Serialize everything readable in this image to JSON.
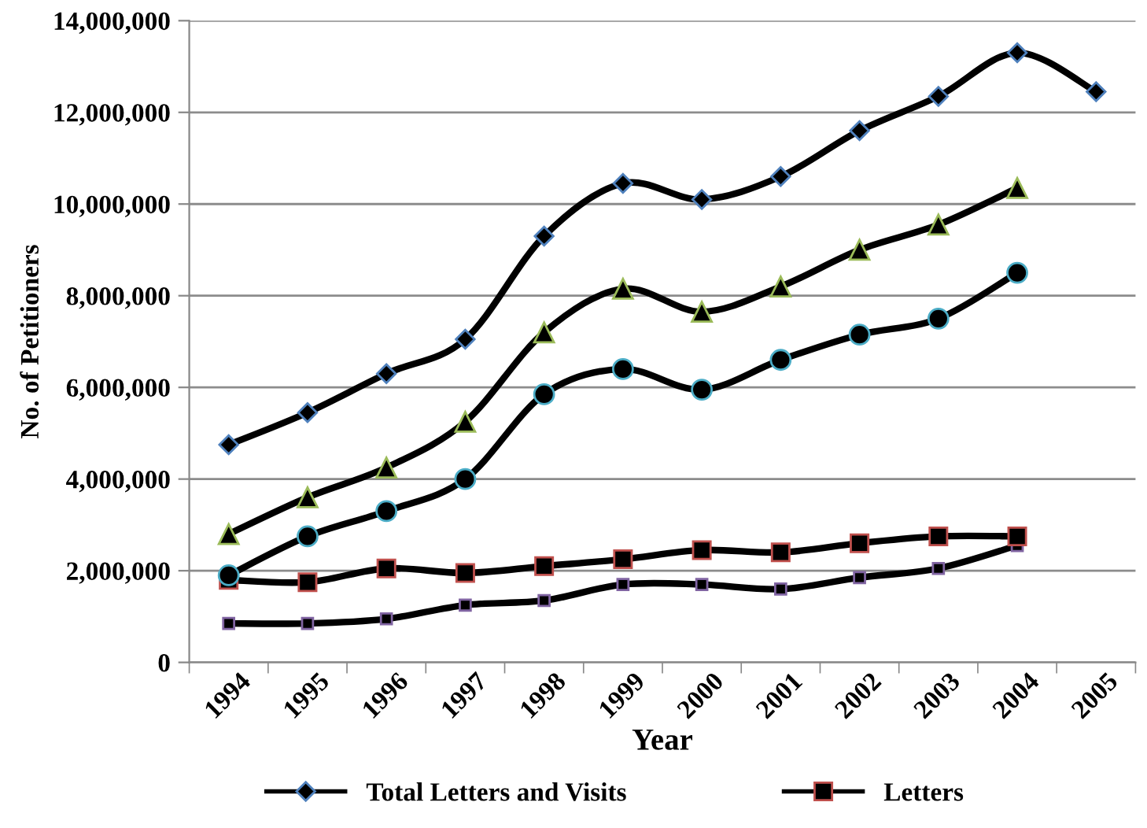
{
  "chart_data": {
    "type": "line",
    "ylabel": "No. of Petitioners",
    "xlabel": "Year",
    "categories": [
      "1994",
      "1995",
      "1996",
      "1997",
      "1998",
      "1999",
      "2000",
      "2001",
      "2002",
      "2003",
      "2004",
      "2005"
    ],
    "series": [
      {
        "name": "Total Letters and Visits",
        "color": "#000000",
        "marker": "diamond",
        "values": [
          4750000,
          5450000,
          6300000,
          7050000,
          9300000,
          10450000,
          10100000,
          10600000,
          11600000,
          12350000,
          13300000,
          12450000
        ]
      },
      {
        "color": "#000000",
        "marker": "triangle",
        "values": [
          2800000,
          3600000,
          4250000,
          5250000,
          7200000,
          8150000,
          7650000,
          8200000,
          9000000,
          9550000,
          10350000,
          null
        ]
      },
      {
        "color": "#000000",
        "marker": "circle",
        "values": [
          1900000,
          2750000,
          3300000,
          4000000,
          5850000,
          6400000,
          5950000,
          6600000,
          7150000,
          7500000,
          8500000,
          null
        ]
      },
      {
        "name": "Letters",
        "color": "#000000",
        "marker": "square",
        "values": [
          1800000,
          1750000,
          2050000,
          1950000,
          2100000,
          2250000,
          2450000,
          2400000,
          2600000,
          2750000,
          2750000,
          null
        ]
      },
      {
        "color": "#000000",
        "marker": "square",
        "values": [
          850000,
          850000,
          950000,
          1250000,
          1350000,
          1700000,
          1700000,
          1600000,
          1850000,
          2050000,
          2550000,
          null
        ]
      }
    ],
    "ylim": [
      0,
      14000000
    ],
    "yticks": [
      {
        "value": 0,
        "label": "0"
      },
      {
        "value": 2000000,
        "label": "2,000,000"
      },
      {
        "value": 4000000,
        "label": "4,000,000"
      },
      {
        "value": 6000000,
        "label": "6,000,000"
      },
      {
        "value": 8000000,
        "label": "8,000,000"
      },
      {
        "value": 10000000,
        "label": "10,000,000"
      },
      {
        "value": 12000000,
        "label": "12,000,000"
      },
      {
        "value": 14000000,
        "label": "14,000,000"
      }
    ],
    "grid": "y",
    "legend": "bottom",
    "line_style": "solid"
  }
}
